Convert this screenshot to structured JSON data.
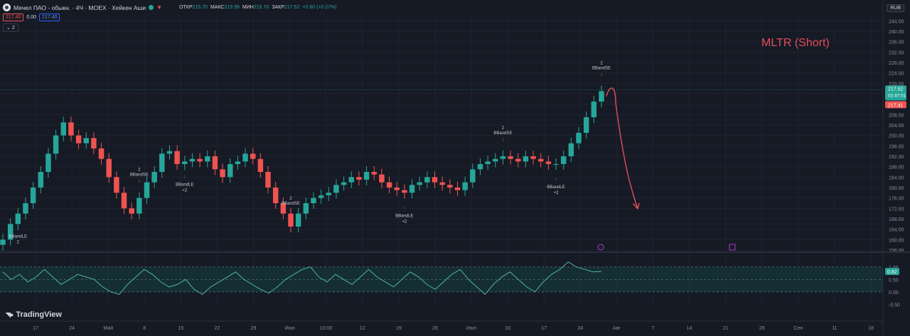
{
  "header": {
    "symbol": "Мечел ПАО - обыкн. · 4Ч · MOEX · Хейкен Аши",
    "ohlc": [
      {
        "k": "ОТКР",
        "v": "215.70"
      },
      {
        "k": "МАКС",
        "v": "219.99"
      },
      {
        "k": "МИН",
        "v": "215.70"
      },
      {
        "k": "ЗАКР",
        "v": "217.52"
      },
      {
        "k": "",
        "v": "+0.60 (+0.27%)"
      }
    ],
    "sell_price": "217.40",
    "spread": "0.00",
    "buy_price": "217.40",
    "indicators_count": "2"
  },
  "currency": "RUB",
  "annotation": "MLTR (Short)",
  "logo": "TradingView",
  "colors": {
    "up": "#26a69a",
    "down": "#ef5350",
    "annotation": "#e04e5a",
    "background": "#161a25",
    "oscillator_band": "#15403f"
  },
  "price_axis": {
    "ticks": [
      "244.00",
      "240.00",
      "236.00",
      "232.00",
      "228.00",
      "224.00",
      "220.00",
      "216.00",
      "212.00",
      "208.00",
      "204.00",
      "200.00",
      "196.00",
      "192.00",
      "188.00",
      "184.00",
      "180.00",
      "176.00",
      "172.00",
      "168.00",
      "164.00",
      "160.00",
      "156.00"
    ],
    "last_price": "217.52",
    "countdown": "02:47:01",
    "alt_price": "217.41"
  },
  "osc_axis": {
    "ticks": [
      "1.00",
      "0.50",
      "0.00",
      "-0.50"
    ],
    "last_value": "0.82"
  },
  "time_axis": {
    "ticks": [
      "17",
      "24",
      "Май",
      "8",
      "15",
      "22",
      "29",
      "Июн",
      "10:00",
      "12",
      "19",
      "26",
      "Июл",
      "10",
      "17",
      "24",
      "Авг",
      "7",
      "14",
      "21",
      "28",
      "Сен",
      "11",
      "18"
    ]
  },
  "signals": [
    {
      "label": "BBandLE",
      "qty": "2",
      "dir": "up"
    },
    {
      "label": "BBandSE",
      "qty": "2",
      "dir": "down"
    },
    {
      "label": "BBandLE",
      "qty": "+2",
      "dir": "up"
    },
    {
      "label": "BBandSE",
      "qty": "2",
      "dir": "down"
    },
    {
      "label": "BBandLE",
      "qty": "+2",
      "dir": "up"
    },
    {
      "label": "BBandSE",
      "qty": "2",
      "dir": "down"
    },
    {
      "label": "BBandLE",
      "qty": "+2",
      "dir": "up"
    },
    {
      "label": "BBandSE",
      "qty": "2",
      "dir": "down"
    }
  ],
  "chart_data": {
    "type": "candlestick",
    "title": "Мечел ПАО - обыкн. · 4Ч · MOEX · Хейкен Аши",
    "xlabel": "",
    "ylabel": "",
    "ylim": [
      156,
      246
    ],
    "series": [
      {
        "name": "Хейкен Аши",
        "values": [
          160,
          166,
          170,
          174,
          180,
          186,
          193,
          200,
          205,
          200,
          197,
          199,
          195,
          191,
          184,
          178,
          172,
          170,
          176,
          182,
          186,
          193,
          194,
          189,
          190,
          191,
          190,
          192,
          187,
          184,
          189,
          190,
          193,
          191,
          186,
          180,
          174,
          170,
          165,
          170,
          174,
          176,
          177,
          178,
          181,
          182,
          184,
          183,
          186,
          185,
          182,
          180,
          179,
          178,
          181,
          182,
          184,
          182,
          181,
          180,
          179,
          182,
          187,
          189,
          190,
          191,
          192,
          191,
          190,
          192,
          191,
          190,
          189,
          189,
          192,
          197,
          201,
          207,
          213,
          217
        ]
      },
      {
        "name": "Осциллятор",
        "values": [
          0.8,
          0.5,
          0.7,
          0.4,
          0.6,
          0.9,
          0.6,
          0.3,
          0.5,
          0.7,
          0.6,
          0.5,
          0.2,
          0.0,
          -0.1,
          0.3,
          0.6,
          0.9,
          0.7,
          0.4,
          0.2,
          0.3,
          0.5,
          0.1,
          -0.1,
          0.2,
          0.4,
          0.6,
          0.8,
          0.5,
          0.3,
          0.1,
          -0.05,
          0.2,
          0.5,
          0.7,
          0.9,
          1.0,
          0.6,
          0.4,
          0.7,
          0.5,
          0.3,
          0.6,
          0.9,
          0.6,
          0.4,
          0.2,
          0.5,
          0.8,
          0.6,
          0.3,
          0.1,
          0.4,
          0.7,
          0.9,
          0.5,
          0.2,
          -0.1,
          0.3,
          0.6,
          0.8,
          0.5,
          0.2,
          0.0,
          0.4,
          0.7,
          0.9,
          1.2,
          1.0,
          0.9,
          0.8,
          0.82
        ]
      }
    ]
  }
}
